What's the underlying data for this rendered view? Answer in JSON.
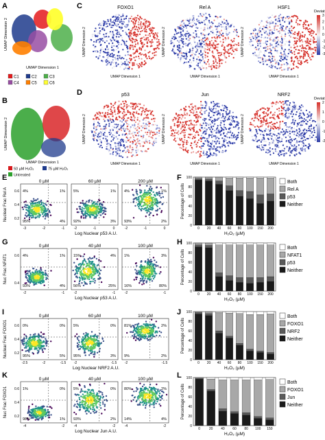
{
  "panels": {
    "A": {
      "letter": "A",
      "xlabel": "UMAP Dimension 1",
      "ylabel": "UMAP Dimension 2",
      "legend": [
        {
          "label": "C1",
          "color": "#e41a1c"
        },
        {
          "label": "C2",
          "color": "#1f3b8c"
        },
        {
          "label": "C3",
          "color": "#4daf4a"
        },
        {
          "label": "C4",
          "color": "#984ea3"
        },
        {
          "label": "C5",
          "color": "#ff7f00"
        },
        {
          "label": "C6",
          "color": "#ffff33"
        }
      ]
    },
    "B": {
      "letter": "B",
      "xlabel": "UMAP Dimension 1",
      "ylabel": "UMAP Dimension 2",
      "legend": [
        {
          "label": "50 µM H₂O₂",
          "color": "#d7191c"
        },
        {
          "label": "75 µM H₂O₂",
          "color": "#1f3b8c"
        },
        {
          "label": "Untreated",
          "color": "#2ca02c"
        }
      ]
    },
    "C": {
      "letter": "C",
      "titles": [
        "FOXO1",
        "Rel A",
        "HSF1"
      ],
      "xlabel": "UMAP Dimension 1",
      "ylabel": "UMAP Dimension 2",
      "cbar_title": "DeviationScore",
      "cbar_ticks": [
        "3",
        "2",
        "1",
        "0",
        "-1",
        "-2",
        "-3"
      ]
    },
    "D": {
      "letter": "D",
      "titles": [
        "p53",
        "Jun",
        "NRF2"
      ],
      "xlabel": "UMAP Dimension 1",
      "ylabel": "UMAP Dimension 2",
      "cbar_title": "DeviationScore",
      "cbar_ticks": [
        "2",
        "1",
        "0",
        "-1",
        "-2"
      ]
    },
    "E": {
      "letter": "E",
      "doses": [
        "0 µM",
        "60 µM",
        "200 µM"
      ],
      "ylabel": "Nuclear Frac Rel A",
      "xlabel": "Log Nuclear p53 A.U.",
      "xticks": [
        [
          "-3",
          "-2",
          "-1"
        ],
        [
          "-2",
          "-1",
          "0"
        ],
        [
          "-2",
          "-1",
          "0"
        ]
      ],
      "yticks": [
        "0.6",
        "0.4",
        "0.2"
      ],
      "quadrants": [
        [
          "4%",
          "1%",
          "95%",
          "4%"
        ],
        [
          "5%",
          "1%",
          "92%",
          "3%"
        ],
        [
          "4%",
          "1%",
          "93%",
          "2%"
        ]
      ]
    },
    "G": {
      "letter": "G",
      "doses": [
        "0 µM",
        "40 µM",
        "100 µM"
      ],
      "ylabel": "Nuc Frac NFAT1",
      "xlabel": "Log Nuclear p53 A.U.",
      "xticks": [
        [
          "-2",
          "-1"
        ],
        [
          "-2",
          "-1"
        ],
        [
          "-2",
          "-1"
        ]
      ],
      "yticks": [
        "0.6",
        "0.4"
      ],
      "quadrants": [
        [
          "4%",
          "1%",
          "93%",
          "4%"
        ],
        [
          "15%",
          "4%",
          "56%",
          "25%"
        ],
        [
          "1%",
          "3%",
          "16%",
          "80%"
        ]
      ]
    },
    "I": {
      "letter": "I",
      "doses": [
        "0 µM",
        "60 µM",
        "100 µM"
      ],
      "ylabel": "Nuclear Frac FOXO1",
      "xlabel": "Log Nuclear NRF2 A.U.",
      "xticks": [
        [
          "-2.5",
          "-2",
          "-1.5"
        ],
        [
          "-2",
          "-1.5"
        ],
        [
          "-2",
          "-1.5"
        ]
      ],
      "yticks": [
        "0.6",
        "0.4",
        "0.2"
      ],
      "quadrants": [
        [
          "0%",
          "0%",
          "95%",
          "5%"
        ],
        [
          "5%",
          "0%",
          "95%",
          "3%"
        ],
        [
          "81%",
          "2%",
          "9%",
          "2%"
        ]
      ]
    },
    "K": {
      "letter": "K",
      "doses": [
        "0 µM",
        "40 µM",
        "100 µM"
      ],
      "ylabel": "Nuc Frac FOXO1",
      "xlabel": "Log Nuclear Jun A.U.",
      "xticks": [
        [
          "-4",
          "-2"
        ],
        [
          "-4",
          "-2"
        ],
        [
          "-4",
          "-2"
        ]
      ],
      "yticks": [
        "0.6",
        "0.4",
        "0.2"
      ],
      "quadrants": [
        [
          "1%",
          "0%",
          "98%",
          "1%"
        ],
        [
          "5%",
          "0%",
          "93%",
          "2%"
        ],
        [
          "80%",
          "2%",
          "14%",
          "4%"
        ]
      ]
    }
  },
  "chart_data": [
    {
      "type": "bar",
      "panel": "F",
      "title": "",
      "xlabel": "H₂O₂ (µM)",
      "ylabel": "Percentage of Cells",
      "ylim": [
        0,
        100
      ],
      "yticks": [
        "100",
        "80",
        "60",
        "40",
        "20",
        "0"
      ],
      "categories": [
        "0",
        "20",
        "40",
        "60",
        "80",
        "100",
        "150",
        "200"
      ],
      "legend_position": "right",
      "series": [
        {
          "name": "Neither",
          "color": "#1a1a1a",
          "values": [
            94,
            92,
            85,
            72,
            60,
            55,
            45,
            50
          ]
        },
        {
          "name": "p53",
          "color": "#5a5a5a",
          "values": [
            3,
            4,
            7,
            10,
            12,
            15,
            18,
            15
          ]
        },
        {
          "name": "Rel A",
          "color": "#a8a8a8",
          "values": [
            2,
            3,
            7,
            16,
            26,
            28,
            35,
            33
          ]
        },
        {
          "name": "Both",
          "color": "#ffffff",
          "values": [
            1,
            1,
            1,
            2,
            2,
            2,
            2,
            2
          ]
        }
      ]
    },
    {
      "type": "bar",
      "panel": "H",
      "title": "",
      "xlabel": "H₂O₂ (µM)",
      "ylabel": "Percentage of Cells",
      "ylim": [
        0,
        100
      ],
      "yticks": [
        "100",
        "80",
        "60",
        "40",
        "20",
        "0"
      ],
      "categories": [
        "0",
        "20",
        "40",
        "60",
        "80",
        "100",
        "150",
        "200"
      ],
      "legend_position": "right",
      "series": [
        {
          "name": "Neither",
          "color": "#1a1a1a",
          "values": [
            92,
            90,
            30,
            22,
            18,
            16,
            18,
            20
          ]
        },
        {
          "name": "p53",
          "color": "#5a5a5a",
          "values": [
            4,
            5,
            8,
            10,
            10,
            12,
            10,
            10
          ]
        },
        {
          "name": "NFAT1",
          "color": "#a8a8a8",
          "values": [
            3,
            4,
            58,
            64,
            68,
            68,
            68,
            66
          ]
        },
        {
          "name": "Both",
          "color": "#ffffff",
          "values": [
            1,
            1,
            4,
            4,
            4,
            4,
            4,
            4
          ]
        }
      ]
    },
    {
      "type": "bar",
      "panel": "J",
      "title": "",
      "xlabel": "H₂O₂ (µM)",
      "ylabel": "Percentage of Cells",
      "ylim": [
        0,
        100
      ],
      "yticks": [
        "100",
        "80",
        "60",
        "40",
        "20",
        "0"
      ],
      "categories": [
        "0",
        "20",
        "40",
        "60",
        "80",
        "100",
        "150",
        "200"
      ],
      "legend_position": "right",
      "series": [
        {
          "name": "Neither",
          "color": "#1a1a1a",
          "values": [
            95,
            92,
            55,
            45,
            30,
            18,
            15,
            12
          ]
        },
        {
          "name": "NRF2",
          "color": "#5a5a5a",
          "values": [
            3,
            4,
            5,
            4,
            4,
            4,
            3,
            3
          ]
        },
        {
          "name": "FOXO1",
          "color": "#a8a8a8",
          "values": [
            1,
            3,
            38,
            48,
            62,
            72,
            76,
            80
          ]
        },
        {
          "name": "Both",
          "color": "#ffffff",
          "values": [
            1,
            1,
            2,
            3,
            4,
            6,
            6,
            5
          ]
        }
      ]
    },
    {
      "type": "bar",
      "panel": "L",
      "title": "",
      "xlabel": "H₂O₂ (µM)",
      "ylabel": "Percentage of Cells",
      "ylim": [
        0,
        100
      ],
      "yticks": [
        "100",
        "80",
        "60",
        "40",
        "20",
        "0"
      ],
      "categories": [
        "0",
        "20",
        "40",
        "60",
        "80",
        "100",
        "150"
      ],
      "legend_position": "right",
      "series": [
        {
          "name": "Neither",
          "color": "#1a1a1a",
          "values": [
            97,
            72,
            30,
            25,
            22,
            15,
            12
          ]
        },
        {
          "name": "Jun",
          "color": "#5a5a5a",
          "values": [
            1,
            3,
            5,
            4,
            5,
            4,
            4
          ]
        },
        {
          "name": "FOXO1",
          "color": "#a8a8a8",
          "values": [
            1,
            22,
            60,
            66,
            68,
            76,
            80
          ]
        },
        {
          "name": "Both",
          "color": "#ffffff",
          "values": [
            1,
            3,
            5,
            5,
            5,
            5,
            4
          ]
        }
      ]
    }
  ]
}
